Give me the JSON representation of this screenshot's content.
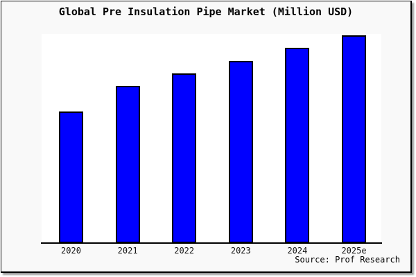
{
  "window": {
    "background": "#f9f9f9",
    "plot_background": "#ffffff",
    "frame_border_color": "#000000",
    "shadow_color": "#9a9a9a"
  },
  "header": {
    "title": "Global Pre Insulation Pipe Market (Million USD)"
  },
  "footer": {
    "source": "Source: Prof Research"
  },
  "chart_data": {
    "type": "bar",
    "title": "Global Pre Insulation Pipe Market (Million USD)",
    "categories": [
      "2020",
      "2021",
      "2022",
      "2023",
      "2024",
      "2025e"
    ],
    "values": [
      63.3,
      75.7,
      81.7,
      87.7,
      94.0,
      100.0
    ],
    "xlabel": "",
    "ylabel": "",
    "grid": false,
    "legend": false,
    "y_axis_labels_visible": false,
    "bar_color": "#0000ff",
    "bar_border_color": "#000000",
    "value_scale_note": "No y-axis scale is printed on the chart; values are relative bar heights normalized to 2025e = 100."
  }
}
